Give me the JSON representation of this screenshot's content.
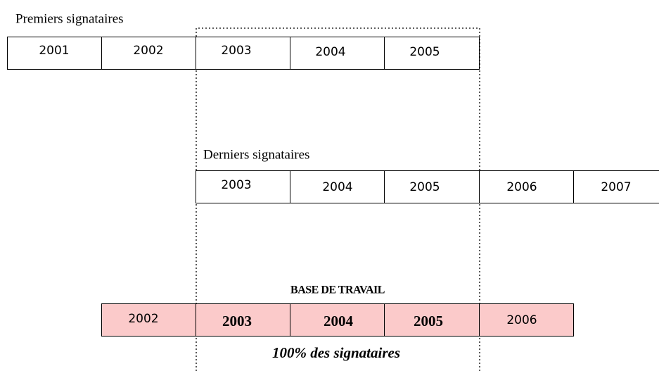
{
  "rows": [
    {
      "label": "Premiers signataires",
      "cells": [
        "2001",
        "2002",
        "2003",
        "2004",
        "2005"
      ]
    },
    {
      "label": "Derniers signataires",
      "cells": [
        "2003",
        "2004",
        "2005",
        "2006",
        "2007"
      ]
    },
    {
      "label": "BASE DE TRAVAIL",
      "cells": [
        "2002",
        "2003",
        "2004",
        "2005",
        "2006"
      ],
      "note": "100% des signataires"
    }
  ]
}
